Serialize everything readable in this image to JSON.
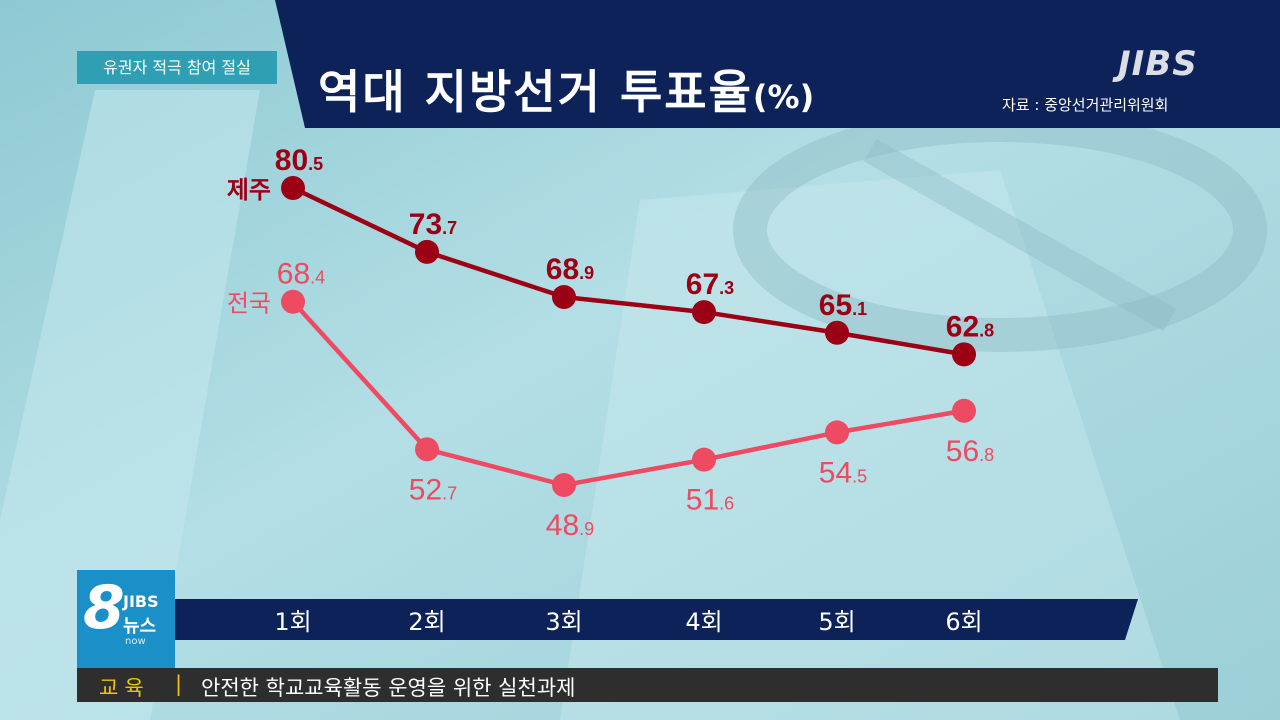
{
  "header": {
    "tag": "유권자 적극 참여 절실",
    "title": "역대 지방선거 투표율",
    "title_unit": "(%)",
    "logo": "JIBS",
    "source": "자료 : 중앙선거관리위원회"
  },
  "colors": {
    "jeju": "#9b0014",
    "national": "#ee4a62",
    "navy": "#0d2258",
    "ticker_accent": "#f0c400"
  },
  "chart_data": {
    "type": "line",
    "title": "역대 지방선거 투표율",
    "ylabel": "(%)",
    "categories": [
      "1회",
      "2회",
      "3회",
      "4회",
      "5회",
      "6회"
    ],
    "series": [
      {
        "name": "제주",
        "values": [
          80.5,
          73.7,
          68.9,
          67.3,
          65.1,
          62.8
        ],
        "labels": [
          [
            "80",
            ".5"
          ],
          [
            "73",
            ".7"
          ],
          [
            "68",
            ".9"
          ],
          [
            "67",
            ".3"
          ],
          [
            "65",
            ".1"
          ],
          [
            "62",
            ".8"
          ]
        ]
      },
      {
        "name": "전국",
        "values": [
          68.4,
          52.7,
          48.9,
          51.6,
          54.5,
          56.8
        ],
        "labels": [
          [
            "68",
            ".4"
          ],
          [
            "52",
            ".7"
          ],
          [
            "48",
            ".9"
          ],
          [
            "51",
            ".6"
          ],
          [
            "54",
            ".5"
          ],
          [
            "56",
            ".8"
          ]
        ]
      }
    ],
    "grid": false,
    "legend": "inline-left"
  },
  "news_logo": {
    "number": "8",
    "brand": "JIBS",
    "name": "뉴스",
    "sub": "now"
  },
  "ticker": {
    "category": "교육",
    "separator": "|",
    "text": "안전한 학교교육활동 운영을 위한 실천과제"
  }
}
